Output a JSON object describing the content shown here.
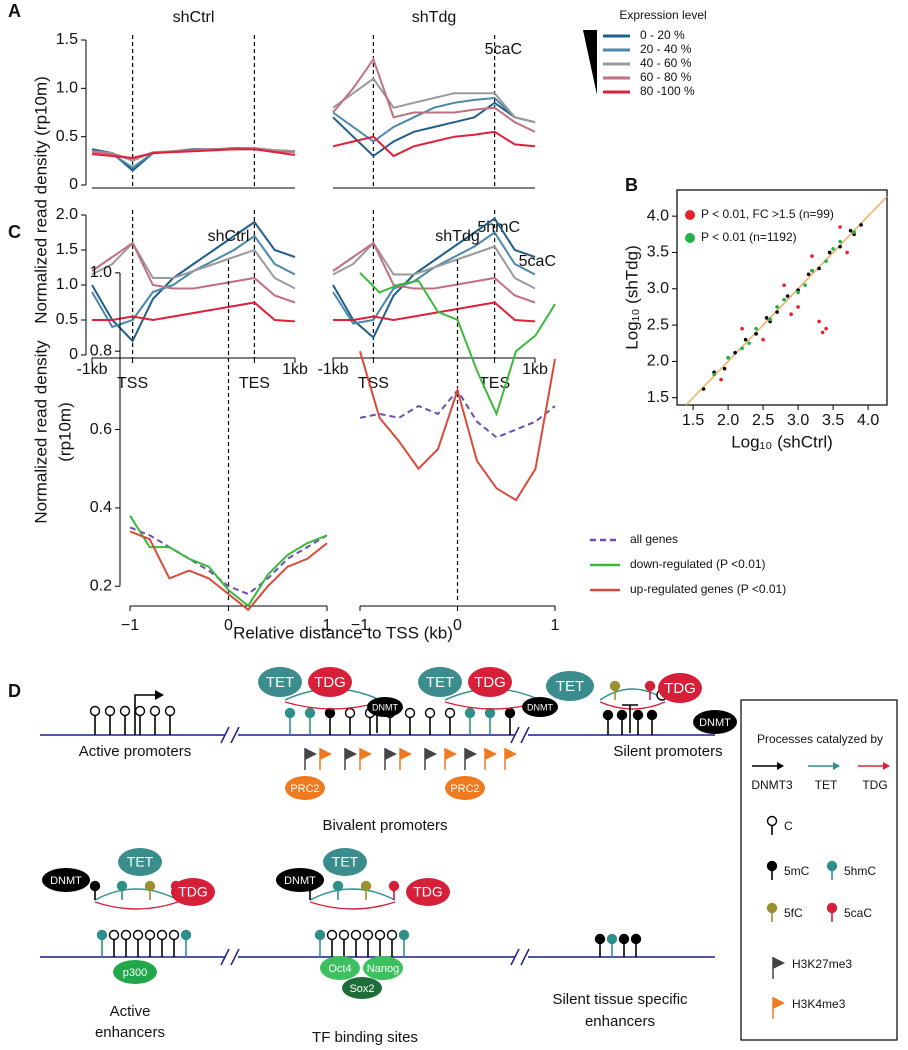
{
  "panel_labels": [
    "A",
    "B",
    "C",
    "D"
  ],
  "chart_data": [
    {
      "type": "line",
      "title": "shCtrl",
      "y_label": "Normalized read density (rp10m)",
      "legend_title": "Expression level",
      "x": [
        0,
        1,
        2,
        3,
        4,
        5,
        6,
        7,
        8,
        9,
        10
      ],
      "xlim": [
        0,
        10
      ],
      "vlines": [
        2,
        8
      ],
      "ylim": [
        0,
        1.5
      ],
      "yticks": [
        0,
        0.5,
        {
          "value": 1,
          "label": "1.0"
        },
        1.5
      ],
      "series": [
        {
          "name": "0 -  20 %",
          "color": "#1f5f8b",
          "values": [
            0.37,
            0.33,
            0.15,
            0.33,
            0.35,
            0.37,
            0.37,
            0.38,
            0.38,
            0.36,
            0.35
          ]
        },
        {
          "name": "20 -  40 %",
          "color": "#4a87a8",
          "values": [
            0.35,
            0.32,
            0.18,
            0.33,
            0.35,
            0.36,
            0.37,
            0.37,
            0.37,
            0.36,
            0.35
          ]
        },
        {
          "name": "40 -  60 %",
          "color": "#9a9a9a",
          "values": [
            0.35,
            0.33,
            0.25,
            0.34,
            0.35,
            0.36,
            0.37,
            0.37,
            0.38,
            0.36,
            0.35
          ]
        },
        {
          "name": "60 -  80 %",
          "color": "#c07080",
          "values": [
            0.34,
            0.32,
            0.27,
            0.33,
            0.35,
            0.36,
            0.37,
            0.37,
            0.38,
            0.35,
            0.34
          ]
        },
        {
          "name": "80 -100 %",
          "color": "#e0203a",
          "values": [
            0.32,
            0.3,
            0.28,
            0.33,
            0.34,
            0.35,
            0.36,
            0.37,
            0.37,
            0.34,
            0.31
          ]
        }
      ]
    },
    {
      "type": "line",
      "title": "shTdg",
      "annotation": "5caC",
      "x": [
        0,
        1,
        2,
        3,
        4,
        5,
        6,
        7,
        8,
        9,
        10
      ],
      "xlim": [
        0,
        10
      ],
      "vlines": [
        2,
        8
      ],
      "ylim": [
        0,
        1.5
      ],
      "series": [
        {
          "color": "#1f5f8b",
          "values": [
            0.7,
            0.5,
            0.3,
            0.45,
            0.55,
            0.6,
            0.65,
            0.7,
            0.85,
            0.7,
            0.65
          ]
        },
        {
          "color": "#4a87a8",
          "values": [
            0.75,
            0.6,
            0.45,
            0.6,
            0.7,
            0.8,
            0.85,
            0.88,
            0.9,
            0.7,
            0.65
          ]
        },
        {
          "color": "#9a9a9a",
          "values": [
            0.8,
            0.95,
            1.1,
            0.8,
            0.85,
            0.9,
            0.95,
            0.95,
            0.95,
            0.7,
            0.65
          ]
        },
        {
          "color": "#c07080",
          "values": [
            0.75,
            1.0,
            1.3,
            0.7,
            0.75,
            0.75,
            0.75,
            0.78,
            0.8,
            0.65,
            0.55
          ]
        },
        {
          "color": "#e0203a",
          "values": [
            0.4,
            0.45,
            0.5,
            0.3,
            0.4,
            0.45,
            0.5,
            0.52,
            0.55,
            0.42,
            0.4
          ]
        }
      ]
    },
    {
      "type": "line",
      "x": [
        0,
        1,
        2,
        3,
        4,
        5,
        6,
        7,
        8,
        9,
        10
      ],
      "xlim": [
        0,
        10
      ],
      "vlines": [
        2,
        8
      ],
      "ylim": [
        0,
        2
      ],
      "xticks": [
        {
          "value": 0,
          "label": "-1kb"
        },
        {
          "value": 2,
          "label": "TSS"
        },
        {
          "value": 8,
          "label": "TES"
        },
        {
          "value": 10,
          "label": "1kb"
        }
      ],
      "yticks": [
        0,
        0.5,
        {
          "value": 1,
          "label": "1.0"
        },
        1.5,
        {
          "value": 2,
          "label": "2.0"
        }
      ],
      "series": [
        {
          "color": "#1f5f8b",
          "values": [
            1.0,
            0.5,
            0.2,
            0.8,
            1.1,
            1.3,
            1.5,
            1.7,
            1.9,
            1.5,
            1.4
          ]
        },
        {
          "color": "#4a87a8",
          "values": [
            0.9,
            0.4,
            0.5,
            0.9,
            1.0,
            1.2,
            1.35,
            1.5,
            1.7,
            1.3,
            1.15
          ]
        },
        {
          "color": "#9a9a9a",
          "values": [
            1.15,
            1.3,
            1.6,
            1.1,
            1.1,
            1.2,
            1.3,
            1.4,
            1.5,
            1.1,
            0.95
          ]
        },
        {
          "color": "#c07080",
          "values": [
            1.2,
            1.4,
            1.6,
            1.0,
            0.95,
            0.95,
            1.0,
            1.05,
            1.1,
            0.85,
            0.75
          ]
        },
        {
          "color": "#e0203a",
          "values": [
            0.5,
            0.5,
            0.55,
            0.5,
            0.55,
            0.6,
            0.65,
            0.7,
            0.75,
            0.5,
            0.48
          ]
        }
      ]
    },
    {
      "type": "line",
      "annotation": "5hmC",
      "x": [
        0,
        1,
        2,
        3,
        4,
        5,
        6,
        7,
        8,
        9,
        10
      ],
      "xlim": [
        0,
        10
      ],
      "vlines": [
        2,
        8
      ],
      "ylim": [
        0,
        2
      ],
      "xticks": [
        {
          "value": 0,
          "label": "-1kb"
        },
        {
          "value": 2,
          "label": "TSS"
        },
        {
          "value": 8,
          "label": "TES"
        },
        {
          "value": 10,
          "label": "1kb"
        }
      ],
      "series": [
        {
          "color": "#1f5f8b",
          "values": [
            1.0,
            0.5,
            0.25,
            0.85,
            1.15,
            1.35,
            1.55,
            1.75,
            1.95,
            1.5,
            1.4
          ]
        },
        {
          "color": "#4a87a8",
          "values": [
            0.9,
            0.45,
            0.5,
            0.95,
            1.05,
            1.25,
            1.4,
            1.55,
            1.75,
            1.3,
            1.15
          ]
        },
        {
          "color": "#9a9a9a",
          "values": [
            1.15,
            1.3,
            1.6,
            1.15,
            1.15,
            1.25,
            1.35,
            1.45,
            1.55,
            1.1,
            0.95
          ]
        },
        {
          "color": "#c07080",
          "values": [
            1.2,
            1.4,
            1.6,
            1.0,
            0.95,
            0.95,
            1.0,
            1.05,
            1.1,
            0.85,
            0.75
          ]
        },
        {
          "color": "#e0203a",
          "values": [
            0.5,
            0.5,
            0.55,
            0.5,
            0.55,
            0.6,
            0.65,
            0.7,
            0.75,
            0.5,
            0.48
          ]
        }
      ]
    },
    {
      "type": "scatter",
      "x_label": "Log₁₀ (shCtrl)",
      "y_label": "Log₁₀ (shTdg)",
      "xlim": [
        1.27,
        4.27
      ],
      "ylim": [
        1.4,
        4.36
      ],
      "xticks": [
        1.5,
        {
          "value": 2,
          "label": "2.0"
        },
        2.5,
        {
          "value": 3,
          "label": "3.0"
        },
        3.5,
        {
          "value": 4,
          "label": "4.0"
        }
      ],
      "yticks": [
        1.5,
        {
          "value": 2,
          "label": "2.0"
        },
        2.5,
        {
          "value": 3,
          "label": "3.0"
        },
        3.5,
        {
          "value": 4,
          "label": "4.0"
        }
      ],
      "series": [
        {
          "color": "#000000",
          "x": [
            1.65,
            1.8,
            1.95,
            2.1,
            2.25,
            2.4,
            2.55,
            2.7,
            2.85,
            3.0,
            3.15,
            3.3,
            3.45,
            3.6,
            3.75,
            3.9,
            2.0,
            2.6,
            3.2,
            3.8
          ],
          "values": [
            1.62,
            1.85,
            1.9,
            2.12,
            2.3,
            2.38,
            2.6,
            2.68,
            2.9,
            2.98,
            3.2,
            3.28,
            3.5,
            3.58,
            3.8,
            3.88,
            2.05,
            2.55,
            3.25,
            3.75
          ]
        },
        {
          "name": "P < 0.01, FC >1.5 (n=99)",
          "color": "#e8202a",
          "x": [
            2.2,
            2.5,
            2.8,
            3.0,
            3.2,
            3.3,
            3.35,
            3.4,
            2.9,
            3.6,
            1.9,
            3.7
          ],
          "values": [
            2.45,
            2.3,
            3.05,
            2.75,
            3.45,
            2.55,
            2.4,
            2.45,
            2.65,
            3.85,
            1.75,
            3.5
          ]
        },
        {
          "name": "P < 0.01 (n=1192)",
          "color": "#22b14c",
          "x": [
            1.8,
            2.0,
            2.2,
            2.4,
            2.6,
            2.8,
            3.0,
            3.2,
            3.4,
            3.6,
            3.8,
            2.3,
            2.7,
            3.1,
            3.5
          ],
          "values": [
            1.82,
            2.05,
            2.18,
            2.45,
            2.58,
            2.85,
            2.95,
            3.25,
            3.38,
            3.65,
            3.78,
            2.25,
            2.75,
            3.05,
            3.55
          ]
        }
      ]
    },
    {
      "type": "line",
      "title": "shCtrl",
      "y_label": [
        "Normalized read density",
        "(rp10m)"
      ],
      "x_label": "Relative distance to TSS (kb)",
      "x": [
        -1,
        -0.8,
        -0.6,
        -0.4,
        -0.2,
        0,
        0.2,
        0.4,
        0.6,
        0.8,
        1
      ],
      "xlim": [
        -1,
        1
      ],
      "vlines": [
        0
      ],
      "ylim": [
        0.17,
        1.02
      ],
      "xticks": [
        {
          "value": -1,
          "label": "−1"
        },
        0,
        1
      ],
      "yticks": [
        0.2,
        0.4,
        0.6,
        0.8,
        {
          "value": 1,
          "label": "1.0"
        }
      ],
      "series": [
        {
          "name": "all genes",
          "color": "#6a4fb0",
          "dash": true,
          "values": [
            0.35,
            0.33,
            0.3,
            0.27,
            0.24,
            0.2,
            0.18,
            0.22,
            0.27,
            0.3,
            0.33
          ]
        },
        {
          "name": "down-regulated (P <0.01)",
          "color": "#3cb83c",
          "values": [
            0.38,
            0.3,
            0.3,
            0.27,
            0.25,
            0.19,
            0.15,
            0.23,
            0.28,
            0.31,
            0.33
          ]
        },
        {
          "name": "up-regulated genes (P <0.01)",
          "color": "#d84a3a",
          "values": [
            0.34,
            0.32,
            0.22,
            0.24,
            0.22,
            0.18,
            0.14,
            0.2,
            0.25,
            0.27,
            0.31
          ]
        }
      ]
    },
    {
      "type": "line",
      "title": "shTdg",
      "annotation": "5caC",
      "x": [
        -1,
        -0.8,
        -0.6,
        -0.4,
        -0.2,
        0,
        0.2,
        0.4,
        0.6,
        0.8,
        1
      ],
      "xlim": [
        -1,
        1
      ],
      "vlines": [
        0
      ],
      "ylim": [
        0.17,
        1.02
      ],
      "xticks": [
        {
          "value": -1,
          "label": "−1"
        },
        0,
        1
      ],
      "series": [
        {
          "color": "#6a4fb0",
          "dash": true,
          "values": [
            0.63,
            0.64,
            0.63,
            0.66,
            0.64,
            0.7,
            0.62,
            0.58,
            0.6,
            0.62,
            0.66
          ]
        },
        {
          "color": "#3cb83c",
          "values": [
            1.0,
            0.95,
            0.97,
            0.98,
            0.9,
            0.88,
            0.75,
            0.64,
            0.8,
            0.84,
            0.92
          ]
        },
        {
          "color": "#d84a3a",
          "values": [
            0.8,
            0.63,
            0.57,
            0.5,
            0.55,
            0.7,
            0.52,
            0.45,
            0.42,
            0.5,
            0.78
          ]
        }
      ]
    }
  ],
  "diagram": {
    "regions": {
      "active_promoters": "Active promoters",
      "bivalent_promoters": "Bivalent promoters",
      "silent_promoters": "Silent promoters",
      "active_enhancers": [
        "Active",
        "enhancers"
      ],
      "tf_binding_sites": "TF binding sites",
      "silent_enhancers": [
        "Silent tissue specific",
        "enhancers"
      ]
    },
    "enzymes": {
      "tet": "TET",
      "tdg": "TDG",
      "dnmt": "DNMT",
      "prc2": "PRC2",
      "p300": "p300",
      "oct4": "Oct4",
      "nanog": "Nanog",
      "sox2": "Sox2"
    },
    "legend": {
      "title": "Processes catalyzed by",
      "processes": [
        "DNMT3",
        "TET",
        "TDG"
      ],
      "bases": [
        "C",
        "5mC",
        "5hmC",
        "5fC",
        "5caC"
      ],
      "marks": [
        "H3K27me3",
        "H3K4me3"
      ]
    }
  }
}
